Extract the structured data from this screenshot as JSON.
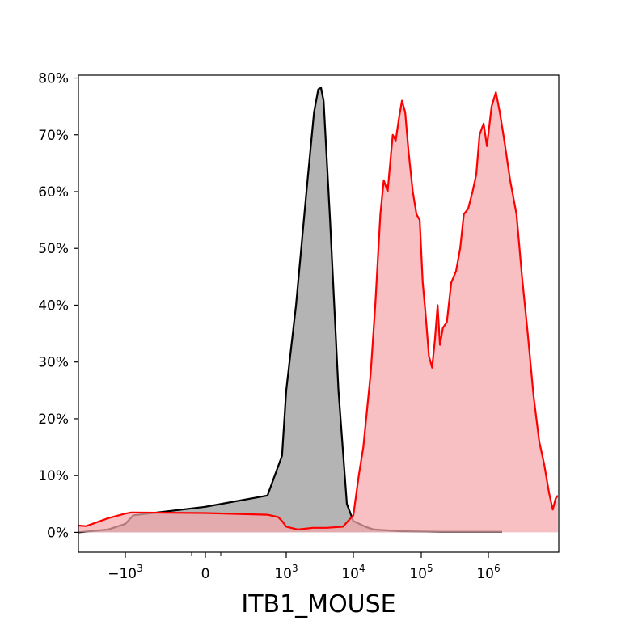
{
  "chart_data": {
    "type": "area",
    "xlabel": "ITB1_MOUSE",
    "ylabel": "",
    "x_scale": "biexponential",
    "grid": false,
    "legend": false,
    "ylim": [
      -0.035,
      0.805
    ],
    "y_ticks": [
      {
        "value": 0.0,
        "label": "0%"
      },
      {
        "value": 0.1,
        "label": "10%"
      },
      {
        "value": 0.2,
        "label": "20%"
      },
      {
        "value": 0.3,
        "label": "30%"
      },
      {
        "value": 0.4,
        "label": "40%"
      },
      {
        "value": 0.5,
        "label": "50%"
      },
      {
        "value": 0.6,
        "label": "60%"
      },
      {
        "value": 0.7,
        "label": "70%"
      },
      {
        "value": 0.8,
        "label": "80%"
      }
    ],
    "x_ticks": [
      {
        "base": "−10",
        "exp": "3"
      },
      {
        "base": "0",
        "exp": ""
      },
      {
        "base": "10",
        "exp": "3"
      },
      {
        "base": "10",
        "exp": "4"
      },
      {
        "base": "10",
        "exp": "5"
      },
      {
        "base": "10",
        "exp": "6"
      }
    ],
    "series": [
      {
        "color": "#000000",
        "fill": "#b0b0b0",
        "points": [
          [
            -3000,
            0.0
          ],
          [
            -1500,
            0.005
          ],
          [
            -1000,
            0.015
          ],
          [
            -500,
            0.03
          ],
          [
            0,
            0.045
          ],
          [
            200,
            0.065
          ],
          [
            700,
            0.135
          ],
          [
            1000,
            0.25
          ],
          [
            1400,
            0.4
          ],
          [
            2000,
            0.6
          ],
          [
            2600,
            0.74
          ],
          [
            3000,
            0.78
          ],
          [
            3300,
            0.783
          ],
          [
            3600,
            0.76
          ],
          [
            4500,
            0.55
          ],
          [
            6000,
            0.25
          ],
          [
            8000,
            0.05
          ],
          [
            10000,
            0.02
          ],
          [
            15000,
            0.01
          ],
          [
            20000,
            0.005
          ],
          [
            50000,
            0.002
          ],
          [
            200000,
            0.001
          ],
          [
            1500000,
            0.001
          ]
        ]
      },
      {
        "color": "#ff0000",
        "fill": "#f5a8ab",
        "points": [
          [
            -3000,
            0.012
          ],
          [
            -2500,
            0.011
          ],
          [
            -1500,
            0.025
          ],
          [
            -1000,
            0.033
          ],
          [
            -600,
            0.035
          ],
          [
            0,
            0.034
          ],
          [
            200,
            0.031
          ],
          [
            500,
            0.027
          ],
          [
            700,
            0.02
          ],
          [
            1000,
            0.01
          ],
          [
            1500,
            0.005
          ],
          [
            2500,
            0.008
          ],
          [
            4000,
            0.008
          ],
          [
            7000,
            0.01
          ],
          [
            10000,
            0.03
          ],
          [
            12000,
            0.1
          ],
          [
            14000,
            0.15
          ],
          [
            18000,
            0.28
          ],
          [
            21000,
            0.4
          ],
          [
            25000,
            0.56
          ],
          [
            28000,
            0.62
          ],
          [
            32000,
            0.6
          ],
          [
            38000,
            0.7
          ],
          [
            42000,
            0.69
          ],
          [
            47000,
            0.73
          ],
          [
            52000,
            0.76
          ],
          [
            58000,
            0.74
          ],
          [
            65000,
            0.67
          ],
          [
            75000,
            0.6
          ],
          [
            85000,
            0.56
          ],
          [
            95000,
            0.55
          ],
          [
            105000,
            0.44
          ],
          [
            115000,
            0.39
          ],
          [
            130000,
            0.31
          ],
          [
            145000,
            0.29
          ],
          [
            160000,
            0.34
          ],
          [
            175000,
            0.4
          ],
          [
            190000,
            0.33
          ],
          [
            210000,
            0.36
          ],
          [
            240000,
            0.37
          ],
          [
            280000,
            0.44
          ],
          [
            330000,
            0.46
          ],
          [
            380000,
            0.5
          ],
          [
            430000,
            0.56
          ],
          [
            500000,
            0.57
          ],
          [
            580000,
            0.6
          ],
          [
            660000,
            0.63
          ],
          [
            740000,
            0.7
          ],
          [
            850000,
            0.72
          ],
          [
            950000,
            0.68
          ],
          [
            1100000,
            0.75
          ],
          [
            1250000,
            0.775
          ],
          [
            1400000,
            0.74
          ],
          [
            1600000,
            0.69
          ],
          [
            1900000,
            0.62
          ],
          [
            2300000,
            0.56
          ],
          [
            2700000,
            0.45
          ],
          [
            3200000,
            0.35
          ],
          [
            3800000,
            0.24
          ],
          [
            4500000,
            0.16
          ],
          [
            5200000,
            0.12
          ],
          [
            6000000,
            0.07
          ],
          [
            6700000,
            0.04
          ],
          [
            7300000,
            0.06
          ],
          [
            7800000,
            0.065
          ]
        ]
      }
    ]
  }
}
